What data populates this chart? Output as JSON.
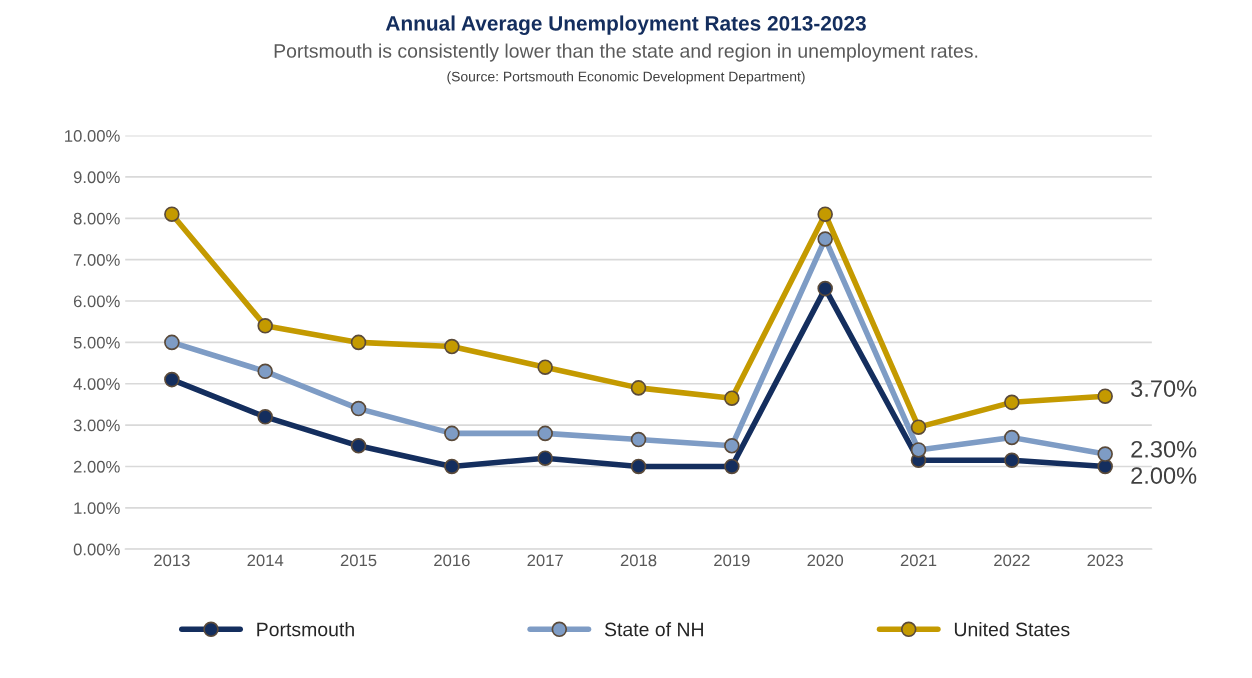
{
  "chart_data": {
    "type": "line",
    "title": "Annual Average Unemployment Rates 2013-2023",
    "subtitle": "Portsmouth is consistently lower than the state and region in unemployment rates.",
    "annotations": [
      "(Source: Portsmouth Economic Development Department)"
    ],
    "categories": [
      "2013",
      "2014",
      "2015",
      "2016",
      "2017",
      "2018",
      "2019",
      "2020",
      "2021",
      "2022",
      "2023"
    ],
    "series": [
      {
        "name": "Portsmouth",
        "color": "#142e5e",
        "values": [
          4.1,
          3.2,
          2.5,
          2.0,
          2.2,
          2.0,
          2.0,
          6.3,
          2.15,
          2.15,
          2.0
        ],
        "value_labels": [
          null,
          null,
          null,
          null,
          null,
          null,
          null,
          null,
          null,
          null,
          "2.00%"
        ]
      },
      {
        "name": "State of NH",
        "color": "#7e9cc5",
        "values": [
          5.0,
          4.3,
          3.4,
          2.8,
          2.8,
          2.65,
          2.5,
          7.5,
          2.4,
          2.7,
          2.3
        ],
        "value_labels": [
          null,
          null,
          null,
          null,
          null,
          null,
          null,
          null,
          null,
          null,
          "2.30%"
        ]
      },
      {
        "name": "United States",
        "color": "#c49a00",
        "values": [
          8.1,
          5.4,
          5.0,
          4.9,
          4.4,
          3.9,
          3.65,
          8.1,
          2.95,
          3.55,
          3.7
        ],
        "value_labels": [
          null,
          null,
          null,
          null,
          null,
          null,
          null,
          null,
          null,
          null,
          "3.70%"
        ]
      }
    ],
    "ylim": [
      0,
      10
    ],
    "yticks": [
      {
        "value": 0,
        "label": "0.00%"
      },
      {
        "value": 1,
        "label": "1.00%"
      },
      {
        "value": 2,
        "label": "2.00%"
      },
      {
        "value": 3,
        "label": "3.00%"
      },
      {
        "value": 4,
        "label": "4.00%"
      },
      {
        "value": 5,
        "label": "5.00%"
      },
      {
        "value": 6,
        "label": "6.00%"
      },
      {
        "value": 7,
        "label": "7.00%"
      },
      {
        "value": 8,
        "label": "8.00%"
      },
      {
        "value": 9,
        "label": "9.00%"
      },
      {
        "value": 10,
        "label": "10.00%"
      }
    ],
    "grid": "y",
    "legend": "bottom",
    "marker": "circle",
    "line_style": "solid"
  }
}
